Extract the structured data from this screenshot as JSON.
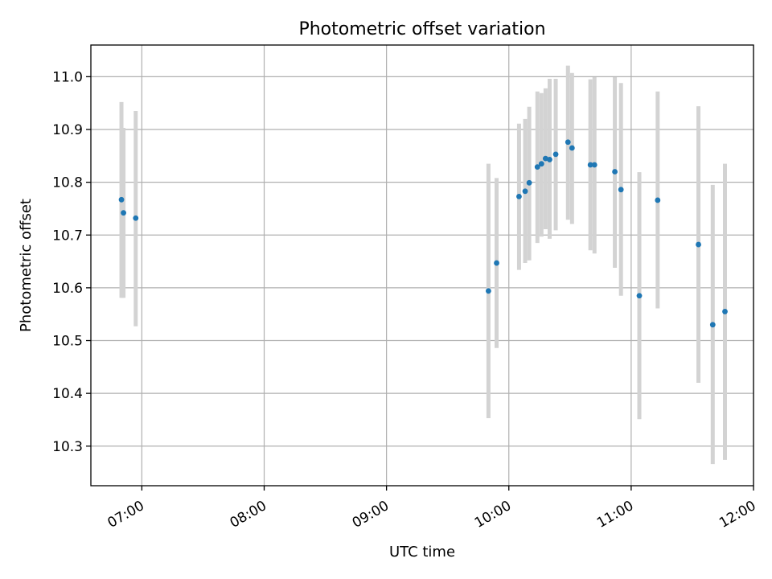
{
  "chart_data": {
    "type": "scatter",
    "title": "Photometric offset variation",
    "xlabel": "UTC time",
    "ylabel": "Photometric offset",
    "xlim": [
      "06:35",
      "12:00"
    ],
    "ylim": [
      10.225,
      11.06
    ],
    "xticks": [
      "07:00",
      "08:00",
      "09:00",
      "10:00",
      "11:00",
      "12:00"
    ],
    "yticks": [
      "10.3",
      "10.4",
      "10.5",
      "10.6",
      "10.7",
      "10.8",
      "10.9",
      "11.0"
    ],
    "grid": true,
    "colors": {
      "point": "#1f77b4",
      "errorbar": "#d3d3d3",
      "grid": "#b0b0b0"
    },
    "points": [
      {
        "time": "06:50",
        "y": 10.767,
        "yerr_low": 10.581,
        "yerr_high": 10.952
      },
      {
        "time": "06:51",
        "y": 10.742,
        "yerr_low": 10.581,
        "yerr_high": 10.903
      },
      {
        "time": "06:57",
        "y": 10.732,
        "yerr_low": 10.527,
        "yerr_high": 10.935
      },
      {
        "time": "09:50",
        "y": 10.594,
        "yerr_low": 10.353,
        "yerr_high": 10.835
      },
      {
        "time": "09:54",
        "y": 10.647,
        "yerr_low": 10.486,
        "yerr_high": 10.808
      },
      {
        "time": "10:05",
        "y": 10.773,
        "yerr_low": 10.634,
        "yerr_high": 10.911
      },
      {
        "time": "10:08",
        "y": 10.783,
        "yerr_low": 10.647,
        "yerr_high": 10.92
      },
      {
        "time": "10:10",
        "y": 10.799,
        "yerr_low": 10.652,
        "yerr_high": 10.943
      },
      {
        "time": "10:14",
        "y": 10.829,
        "yerr_low": 10.685,
        "yerr_high": 10.972
      },
      {
        "time": "10:16",
        "y": 10.835,
        "yerr_low": 10.697,
        "yerr_high": 10.969
      },
      {
        "time": "10:18",
        "y": 10.845,
        "yerr_low": 10.711,
        "yerr_high": 10.978
      },
      {
        "time": "10:20",
        "y": 10.843,
        "yerr_low": 10.693,
        "yerr_high": 10.996
      },
      {
        "time": "10:23",
        "y": 10.853,
        "yerr_low": 10.709,
        "yerr_high": 10.996
      },
      {
        "time": "10:29",
        "y": 10.876,
        "yerr_low": 10.729,
        "yerr_high": 11.021
      },
      {
        "time": "10:31",
        "y": 10.865,
        "yerr_low": 10.721,
        "yerr_high": 11.007
      },
      {
        "time": "10:40",
        "y": 10.833,
        "yerr_low": 10.671,
        "yerr_high": 10.995
      },
      {
        "time": "10:42",
        "y": 10.833,
        "yerr_low": 10.665,
        "yerr_high": 10.999
      },
      {
        "time": "10:52",
        "y": 10.82,
        "yerr_low": 10.638,
        "yerr_high": 10.999
      },
      {
        "time": "10:55",
        "y": 10.786,
        "yerr_low": 10.585,
        "yerr_high": 10.988
      },
      {
        "time": "11:04",
        "y": 10.585,
        "yerr_low": 10.351,
        "yerr_high": 10.819
      },
      {
        "time": "11:13",
        "y": 10.766,
        "yerr_low": 10.561,
        "yerr_high": 10.972
      },
      {
        "time": "11:33",
        "y": 10.682,
        "yerr_low": 10.42,
        "yerr_high": 10.944
      },
      {
        "time": "11:40",
        "y": 10.53,
        "yerr_low": 10.266,
        "yerr_high": 10.795
      },
      {
        "time": "11:46",
        "y": 10.555,
        "yerr_low": 10.274,
        "yerr_high": 10.835
      }
    ]
  }
}
